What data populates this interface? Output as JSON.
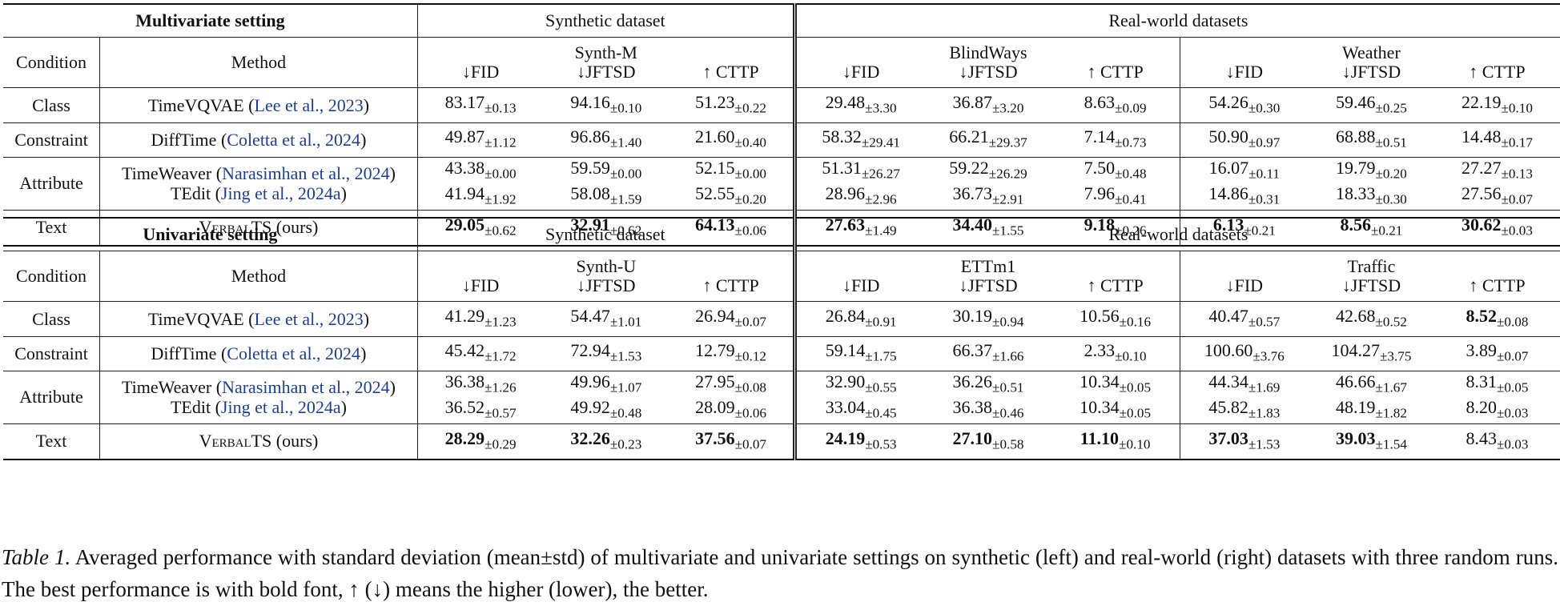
{
  "arrows": {
    "down": "↓",
    "up": "↑"
  },
  "metrics": [
    "FID",
    "JFTSD",
    "CTTP"
  ],
  "columns": {
    "condition": "Condition",
    "method": "Method"
  },
  "groups": {
    "synthetic": "Synthetic dataset",
    "real": "Real-world datasets"
  },
  "citations": {
    "timevqvae": "Lee et al., 2023",
    "difftime": "Coletta et al., 2024",
    "timeweaver": "Narasimhan et al., 2024",
    "tedit": "Jing et al., 2024a"
  },
  "conditions": {
    "class": "Class",
    "constraint": "Constraint",
    "attribute": "Attribute",
    "text": "Text"
  },
  "methods": {
    "timevqvae": "TimeVQVAE",
    "difftime": "DiffTime",
    "timeweaver": "TimeWeaver",
    "tedit": "TEdit",
    "verbalts": "VerbalTS",
    "ours": "(ours)"
  },
  "sections": [
    {
      "title": "Multivariate setting",
      "datasets": [
        "Synth-M",
        "BlindWays",
        "Weather"
      ],
      "rows": {
        "timevqvae": [
          [
            "83.17",
            "±0.13"
          ],
          [
            "94.16",
            "±0.10"
          ],
          [
            "51.23",
            "±0.22"
          ],
          [
            "29.48",
            "±3.30"
          ],
          [
            "36.87",
            "±3.20"
          ],
          [
            "8.63",
            "±0.09"
          ],
          [
            "54.26",
            "±0.30"
          ],
          [
            "59.46",
            "±0.25"
          ],
          [
            "22.19",
            "±0.10"
          ]
        ],
        "difftime": [
          [
            "49.87",
            "±1.12"
          ],
          [
            "96.86",
            "±1.40"
          ],
          [
            "21.60",
            "±0.40"
          ],
          [
            "58.32",
            "±29.41"
          ],
          [
            "66.21",
            "±29.37"
          ],
          [
            "7.14",
            "±0.73"
          ],
          [
            "50.90",
            "±0.97"
          ],
          [
            "68.88",
            "±0.51"
          ],
          [
            "14.48",
            "±0.17"
          ]
        ],
        "timeweaver": [
          [
            "43.38",
            "±0.00"
          ],
          [
            "59.59",
            "±0.00"
          ],
          [
            "52.15",
            "±0.00"
          ],
          [
            "51.31",
            "±26.27"
          ],
          [
            "59.22",
            "±26.29"
          ],
          [
            "7.50",
            "±0.48"
          ],
          [
            "16.07",
            "±0.11"
          ],
          [
            "19.79",
            "±0.20"
          ],
          [
            "27.27",
            "±0.13"
          ]
        ],
        "tedit": [
          [
            "41.94",
            "±1.92"
          ],
          [
            "58.08",
            "±1.59"
          ],
          [
            "52.55",
            "±0.20"
          ],
          [
            "28.96",
            "±2.96"
          ],
          [
            "36.73",
            "±2.91"
          ],
          [
            "7.96",
            "±0.41"
          ],
          [
            "14.86",
            "±0.31"
          ],
          [
            "18.33",
            "±0.30"
          ],
          [
            "27.56",
            "±0.07"
          ]
        ],
        "verbalts": [
          [
            "29.05",
            "±0.62"
          ],
          [
            "32.91",
            "±0.62"
          ],
          [
            "64.13",
            "±0.06"
          ],
          [
            "27.63",
            "±1.49"
          ],
          [
            "34.40",
            "±1.55"
          ],
          [
            "9.18",
            "±0.26"
          ],
          [
            "6.13",
            "±0.21"
          ],
          [
            "8.56",
            "±0.21"
          ],
          [
            "30.62",
            "±0.03"
          ]
        ]
      }
    },
    {
      "title": "Univariate setting",
      "datasets": [
        "Synth-U",
        "ETTm1",
        "Traffic"
      ],
      "rows": {
        "timevqvae": [
          [
            "41.29",
            "±1.23"
          ],
          [
            "54.47",
            "±1.01"
          ],
          [
            "26.94",
            "±0.07"
          ],
          [
            "26.84",
            "±0.91"
          ],
          [
            "30.19",
            "±0.94"
          ],
          [
            "10.56",
            "±0.16"
          ],
          [
            "40.47",
            "±0.57"
          ],
          [
            "42.68",
            "±0.52"
          ],
          [
            "8.52",
            "±0.08"
          ]
        ],
        "difftime": [
          [
            "45.42",
            "±1.72"
          ],
          [
            "72.94",
            "±1.53"
          ],
          [
            "12.79",
            "±0.12"
          ],
          [
            "59.14",
            "±1.75"
          ],
          [
            "66.37",
            "±1.66"
          ],
          [
            "2.33",
            "±0.10"
          ],
          [
            "100.60",
            "±3.76"
          ],
          [
            "104.27",
            "±3.75"
          ],
          [
            "3.89",
            "±0.07"
          ]
        ],
        "timeweaver": [
          [
            "36.38",
            "±1.26"
          ],
          [
            "49.96",
            "±1.07"
          ],
          [
            "27.95",
            "±0.08"
          ],
          [
            "32.90",
            "±0.55"
          ],
          [
            "36.26",
            "±0.51"
          ],
          [
            "10.34",
            "±0.05"
          ],
          [
            "44.34",
            "±1.69"
          ],
          [
            "46.66",
            "±1.67"
          ],
          [
            "8.31",
            "±0.05"
          ]
        ],
        "tedit": [
          [
            "36.52",
            "±0.57"
          ],
          [
            "49.92",
            "±0.48"
          ],
          [
            "28.09",
            "±0.06"
          ],
          [
            "33.04",
            "±0.45"
          ],
          [
            "36.38",
            "±0.46"
          ],
          [
            "10.34",
            "±0.05"
          ],
          [
            "45.82",
            "±1.83"
          ],
          [
            "48.19",
            "±1.82"
          ],
          [
            "8.20",
            "±0.03"
          ]
        ],
        "verbalts": [
          [
            "28.29",
            "±0.29"
          ],
          [
            "32.26",
            "±0.23"
          ],
          [
            "37.56",
            "±0.07"
          ],
          [
            "24.19",
            "±0.53"
          ],
          [
            "27.10",
            "±0.58"
          ],
          [
            "11.10",
            "±0.10"
          ],
          [
            "37.03",
            "±1.53"
          ],
          [
            "39.03",
            "±1.54"
          ],
          [
            "8.43",
            "±0.03"
          ]
        ]
      }
    }
  ],
  "caption": {
    "label": "Table 1.",
    "text": "Averaged performance with standard deviation (mean±std) of multivariate and univariate settings on synthetic (left) and real-world (right) datasets with three random runs. The best performance is with bold font, ↑ (↓) means the higher (lower), the better."
  }
}
